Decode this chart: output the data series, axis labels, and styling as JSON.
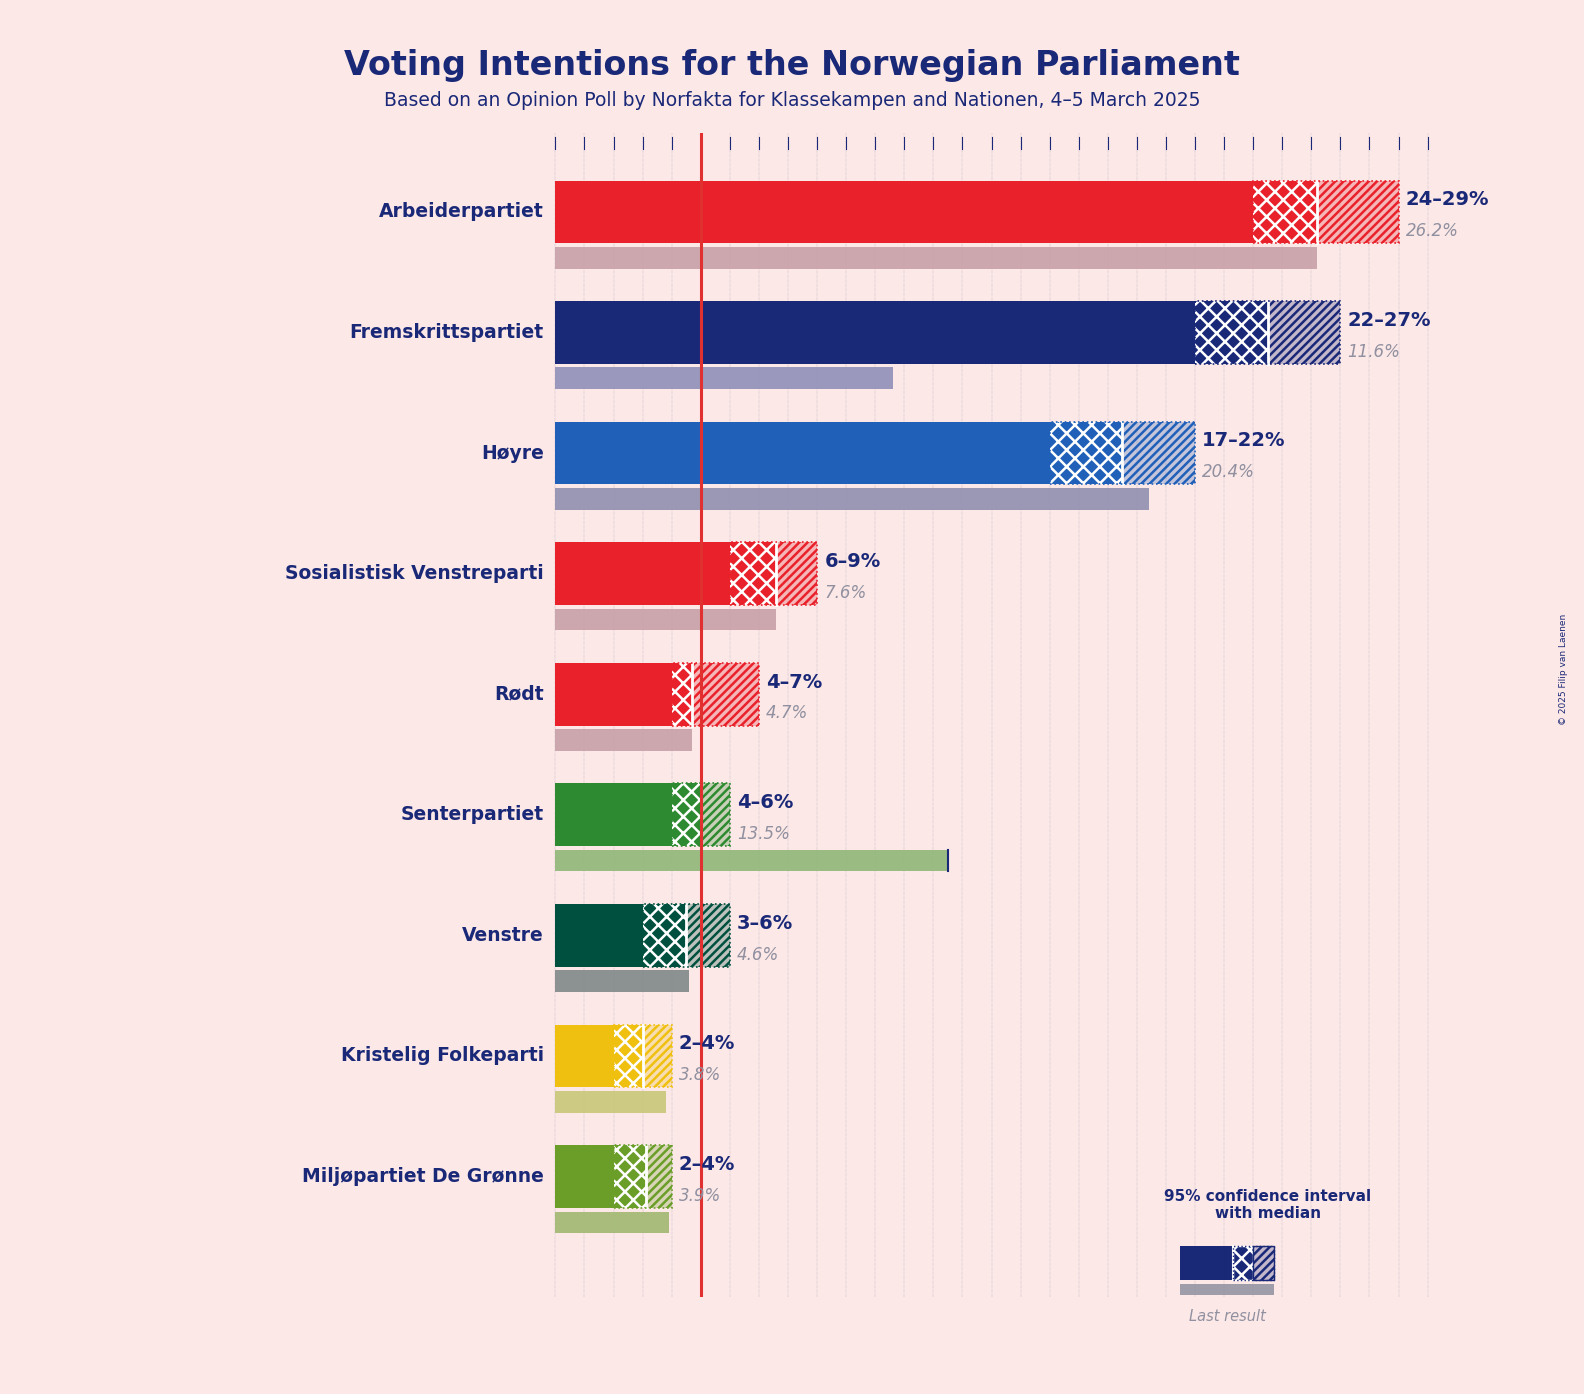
{
  "title": "Voting Intentions for the Norwegian Parliament",
  "subtitle": "Based on an Opinion Poll by Norfakta for Klassekampen and Nationen, 4–5 March 2025",
  "copyright": "© 2025 Filip van Laenen",
  "background_color": "#fce8e6",
  "parties": [
    {
      "name": "Arbeiderpartiet",
      "ci_low": 24,
      "ci_high": 29,
      "median": 26.2,
      "last_result": 26.2,
      "color": "#e8212b",
      "last_color": "#c8a0a8"
    },
    {
      "name": "Fremskrittspartiet",
      "ci_low": 22,
      "ci_high": 27,
      "median": 24.5,
      "last_result": 11.6,
      "color": "#1a2878",
      "last_color": "#9090b8"
    },
    {
      "name": "Høyre",
      "ci_low": 17,
      "ci_high": 22,
      "median": 19.5,
      "last_result": 20.4,
      "color": "#2060b8",
      "last_color": "#9090b0"
    },
    {
      "name": "Sosialistisk Venstreparti",
      "ci_low": 6,
      "ci_high": 9,
      "median": 7.6,
      "last_result": 7.6,
      "color": "#e8212b",
      "last_color": "#c8a0a8"
    },
    {
      "name": "Rødt",
      "ci_low": 4,
      "ci_high": 7,
      "median": 4.7,
      "last_result": 4.7,
      "color": "#e8212b",
      "last_color": "#c8a0a8"
    },
    {
      "name": "Senterpartiet",
      "ci_low": 4,
      "ci_high": 6,
      "median": 5.0,
      "last_result": 13.5,
      "color": "#2d8a30",
      "last_color": "#90b878"
    },
    {
      "name": "Venstre",
      "ci_low": 3,
      "ci_high": 6,
      "median": 4.5,
      "last_result": 4.6,
      "color": "#005040",
      "last_color": "#808888"
    },
    {
      "name": "Kristelig Folkeparti",
      "ci_low": 2,
      "ci_high": 4,
      "median": 3.0,
      "last_result": 3.8,
      "color": "#f0c010",
      "last_color": "#c8c878"
    },
    {
      "name": "Miljøpartiet De Grønne",
      "ci_low": 2,
      "ci_high": 4,
      "median": 3.1,
      "last_result": 3.9,
      "color": "#6a9e28",
      "last_color": "#a0b870"
    }
  ],
  "ci_labels": [
    "24–29%",
    "22–27%",
    "17–22%",
    "6–9%",
    "4–7%",
    "4–6%",
    "3–6%",
    "2–4%",
    "2–4%"
  ],
  "median_labels": [
    "26.2%",
    "11.6%",
    "20.4%",
    "7.6%",
    "4.7%",
    "13.5%",
    "4.6%",
    "3.8%",
    "3.9%"
  ],
  "red_line_x": 5.0,
  "xmax": 30,
  "text_color": "#1a2878",
  "gray_text_color": "#9090a0",
  "legend_dark_color": "#1a2878",
  "legend_gray_color": "#9090a0"
}
